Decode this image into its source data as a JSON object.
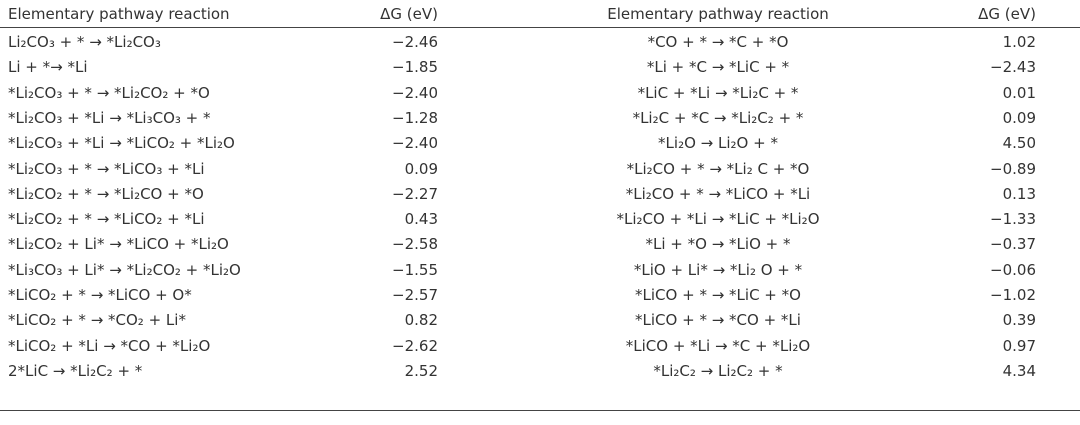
{
  "table": {
    "header": [
      "Elementary pathway reaction",
      "ΔG (eV)",
      "Elementary pathway reaction",
      "ΔG (eV)"
    ],
    "rows": [
      [
        "Li₂CO₃ + * → *Li₂CO₃",
        "−2.46",
        "*CO + * → *C + *O",
        "1.02"
      ],
      [
        "Li + *→ *Li",
        "−1.85",
        "*Li + *C → *LiC + *",
        "−2.43"
      ],
      [
        "*Li₂CO₃ + * → *Li₂CO₂ + *O",
        "−2.40",
        "*LiC + *Li → *Li₂C + *",
        "0.01"
      ],
      [
        "*Li₂CO₃ + *Li → *Li₃CO₃ + *",
        "−1.28",
        "*Li₂C + *C → *Li₂C₂ + *",
        "0.09"
      ],
      [
        "*Li₂CO₃ + *Li → *LiCO₂ + *Li₂O",
        "−2.40",
        "*Li₂O → Li₂O + *",
        "4.50"
      ],
      [
        "*Li₂CO₃ + * → *LiCO₃ + *Li",
        "0.09",
        "*Li₂CO + * → *Li₂ C + *O",
        "−0.89"
      ],
      [
        "*Li₂CO₂ + * → *Li₂CO + *O",
        "−2.27",
        "*Li₂CO + * → *LiCO + *Li",
        "0.13"
      ],
      [
        "*Li₂CO₂ + * → *LiCO₂ + *Li",
        "0.43",
        "*Li₂CO + *Li → *LiC + *Li₂O",
        "−1.33"
      ],
      [
        "*Li₂CO₂ + Li* → *LiCO + *Li₂O",
        "−2.58",
        "*Li + *O → *LiO + *",
        "−0.37"
      ],
      [
        "*Li₃CO₃ + Li* → *Li₂CO₂ + *Li₂O",
        "−1.55",
        "*LiO + Li* → *Li₂ O + *",
        "−0.06"
      ],
      [
        "*LiCO₂ + * → *LiCO + O*",
        "−2.57",
        "*LiCO + * → *LiC + *O",
        "−1.02"
      ],
      [
        "*LiCO₂ + * → *CO₂ + Li*",
        "0.82",
        "*LiCO + * → *CO + *Li",
        "0.39"
      ],
      [
        "*LiCO₂ + *Li → *CO + *Li₂O",
        "−2.62",
        "*LiCO + *Li → *C + *Li₂O",
        "0.97"
      ],
      [
        "2*LiC → *Li₂C₂ + *",
        "2.52",
        "*Li₂C₂ → Li₂C₂ + *",
        "4.34"
      ]
    ]
  }
}
